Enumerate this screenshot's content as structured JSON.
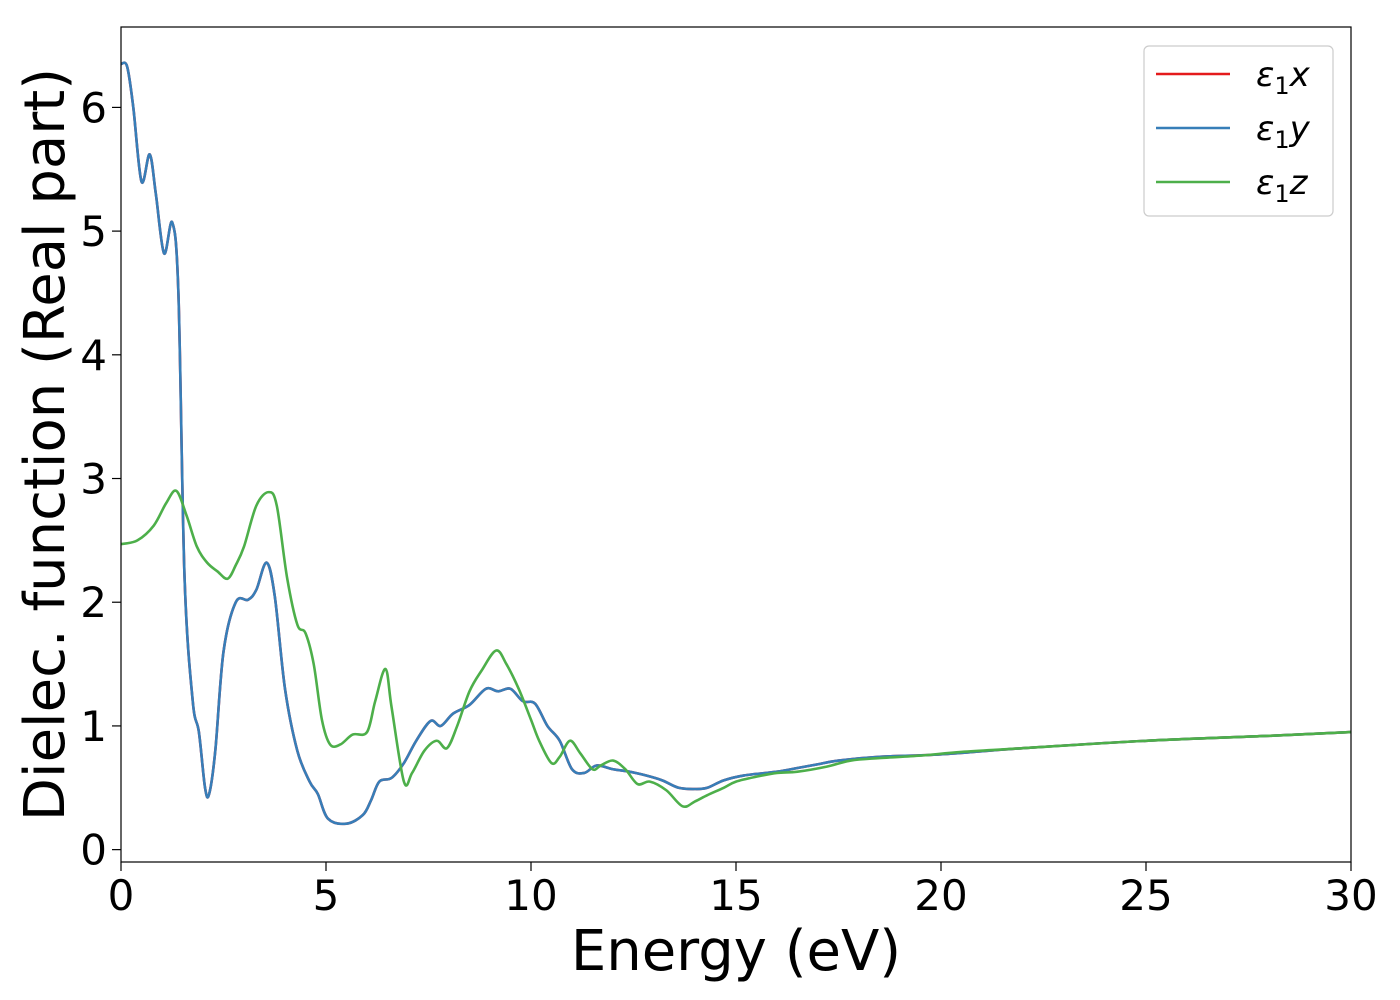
{
  "chart_data": {
    "type": "line",
    "title": "",
    "xlabel": "Energy (eV)",
    "ylabel": "Dielec. function (Real part)",
    "xlim": [
      0,
      30
    ],
    "ylim": [
      -0.1,
      6.65
    ],
    "xticks": [
      "0",
      "5",
      "10",
      "15",
      "20",
      "25",
      "30"
    ],
    "yticks": [
      "0",
      "1",
      "2",
      "3",
      "4",
      "5",
      "6"
    ],
    "grid": false,
    "legend_position": "top-right",
    "series": [
      {
        "name": "ε1x",
        "legend": {
          "symbol": "ε",
          "sub": "1",
          "tail": "x"
        },
        "color": "#e41a1c",
        "points": [
          [
            0,
            6.35
          ],
          [
            0.15,
            6.33
          ],
          [
            0.3,
            6.0
          ],
          [
            0.5,
            5.4
          ],
          [
            0.7,
            5.62
          ],
          [
            0.85,
            5.3
          ],
          [
            1.05,
            4.82
          ],
          [
            1.25,
            5.07
          ],
          [
            1.4,
            4.5
          ],
          [
            1.55,
            2.2
          ],
          [
            1.75,
            1.2
          ],
          [
            1.9,
            0.95
          ],
          [
            2.05,
            0.5
          ],
          [
            2.15,
            0.45
          ],
          [
            2.3,
            0.8
          ],
          [
            2.5,
            1.6
          ],
          [
            2.8,
            2.0
          ],
          [
            3.1,
            2.02
          ],
          [
            3.3,
            2.1
          ],
          [
            3.55,
            2.32
          ],
          [
            3.75,
            2.05
          ],
          [
            4.0,
            1.3
          ],
          [
            4.3,
            0.8
          ],
          [
            4.6,
            0.55
          ],
          [
            4.8,
            0.45
          ],
          [
            5.05,
            0.25
          ],
          [
            5.5,
            0.21
          ],
          [
            5.9,
            0.28
          ],
          [
            6.1,
            0.4
          ],
          [
            6.3,
            0.55
          ],
          [
            6.6,
            0.58
          ],
          [
            6.9,
            0.7
          ],
          [
            7.2,
            0.88
          ],
          [
            7.55,
            1.04
          ],
          [
            7.8,
            1.0
          ],
          [
            8.1,
            1.1
          ],
          [
            8.5,
            1.17
          ],
          [
            8.9,
            1.3
          ],
          [
            9.2,
            1.28
          ],
          [
            9.5,
            1.3
          ],
          [
            9.8,
            1.2
          ],
          [
            10.1,
            1.18
          ],
          [
            10.4,
            1.0
          ],
          [
            10.7,
            0.88
          ],
          [
            11.0,
            0.65
          ],
          [
            11.3,
            0.62
          ],
          [
            11.6,
            0.68
          ],
          [
            12.0,
            0.65
          ],
          [
            12.4,
            0.63
          ],
          [
            12.8,
            0.6
          ],
          [
            13.2,
            0.56
          ],
          [
            13.6,
            0.5
          ],
          [
            14.0,
            0.49
          ],
          [
            14.3,
            0.5
          ],
          [
            14.7,
            0.56
          ],
          [
            15.2,
            0.6
          ],
          [
            16.0,
            0.63
          ],
          [
            16.5,
            0.66
          ],
          [
            17.0,
            0.69
          ],
          [
            17.5,
            0.72
          ],
          [
            18.5,
            0.75
          ],
          [
            20.0,
            0.77
          ],
          [
            22.0,
            0.82
          ],
          [
            25.0,
            0.88
          ],
          [
            28.0,
            0.92
          ],
          [
            30.0,
            0.95
          ]
        ]
      },
      {
        "name": "ε1y",
        "legend": {
          "symbol": "ε",
          "sub": "1",
          "tail": "y"
        },
        "color": "#377eb8",
        "points": [
          [
            0,
            6.35
          ],
          [
            0.15,
            6.33
          ],
          [
            0.3,
            6.0
          ],
          [
            0.5,
            5.4
          ],
          [
            0.7,
            5.62
          ],
          [
            0.85,
            5.3
          ],
          [
            1.05,
            4.82
          ],
          [
            1.25,
            5.07
          ],
          [
            1.4,
            4.5
          ],
          [
            1.55,
            2.2
          ],
          [
            1.75,
            1.2
          ],
          [
            1.9,
            0.95
          ],
          [
            2.05,
            0.5
          ],
          [
            2.15,
            0.45
          ],
          [
            2.3,
            0.8
          ],
          [
            2.5,
            1.6
          ],
          [
            2.8,
            2.0
          ],
          [
            3.1,
            2.02
          ],
          [
            3.3,
            2.1
          ],
          [
            3.55,
            2.32
          ],
          [
            3.75,
            2.05
          ],
          [
            4.0,
            1.3
          ],
          [
            4.3,
            0.8
          ],
          [
            4.6,
            0.55
          ],
          [
            4.8,
            0.45
          ],
          [
            5.05,
            0.25
          ],
          [
            5.5,
            0.21
          ],
          [
            5.9,
            0.28
          ],
          [
            6.1,
            0.4
          ],
          [
            6.3,
            0.55
          ],
          [
            6.6,
            0.58
          ],
          [
            6.9,
            0.7
          ],
          [
            7.2,
            0.88
          ],
          [
            7.55,
            1.04
          ],
          [
            7.8,
            1.0
          ],
          [
            8.1,
            1.1
          ],
          [
            8.5,
            1.17
          ],
          [
            8.9,
            1.3
          ],
          [
            9.2,
            1.28
          ],
          [
            9.5,
            1.3
          ],
          [
            9.8,
            1.2
          ],
          [
            10.1,
            1.18
          ],
          [
            10.4,
            1.0
          ],
          [
            10.7,
            0.88
          ],
          [
            11.0,
            0.65
          ],
          [
            11.3,
            0.62
          ],
          [
            11.6,
            0.68
          ],
          [
            12.0,
            0.65
          ],
          [
            12.4,
            0.63
          ],
          [
            12.8,
            0.6
          ],
          [
            13.2,
            0.56
          ],
          [
            13.6,
            0.5
          ],
          [
            14.0,
            0.49
          ],
          [
            14.3,
            0.5
          ],
          [
            14.7,
            0.56
          ],
          [
            15.2,
            0.6
          ],
          [
            16.0,
            0.63
          ],
          [
            16.5,
            0.66
          ],
          [
            17.0,
            0.69
          ],
          [
            17.5,
            0.72
          ],
          [
            18.5,
            0.75
          ],
          [
            20.0,
            0.77
          ],
          [
            22.0,
            0.82
          ],
          [
            25.0,
            0.88
          ],
          [
            28.0,
            0.92
          ],
          [
            30.0,
            0.95
          ]
        ]
      },
      {
        "name": "ε1z",
        "legend": {
          "symbol": "ε",
          "sub": "1",
          "tail": "z"
        },
        "color": "#4daf4a",
        "points": [
          [
            0,
            2.47
          ],
          [
            0.4,
            2.5
          ],
          [
            0.8,
            2.62
          ],
          [
            1.1,
            2.8
          ],
          [
            1.35,
            2.9
          ],
          [
            1.6,
            2.7
          ],
          [
            1.85,
            2.45
          ],
          [
            2.1,
            2.32
          ],
          [
            2.35,
            2.25
          ],
          [
            2.6,
            2.19
          ],
          [
            2.8,
            2.3
          ],
          [
            3.0,
            2.45
          ],
          [
            3.3,
            2.78
          ],
          [
            3.6,
            2.89
          ],
          [
            3.8,
            2.78
          ],
          [
            4.05,
            2.2
          ],
          [
            4.3,
            1.82
          ],
          [
            4.5,
            1.75
          ],
          [
            4.7,
            1.5
          ],
          [
            4.9,
            1.05
          ],
          [
            5.1,
            0.85
          ],
          [
            5.35,
            0.85
          ],
          [
            5.65,
            0.93
          ],
          [
            6.0,
            0.95
          ],
          [
            6.2,
            1.2
          ],
          [
            6.45,
            1.46
          ],
          [
            6.6,
            1.15
          ],
          [
            6.9,
            0.55
          ],
          [
            7.1,
            0.62
          ],
          [
            7.4,
            0.8
          ],
          [
            7.7,
            0.88
          ],
          [
            7.95,
            0.82
          ],
          [
            8.2,
            1.0
          ],
          [
            8.5,
            1.28
          ],
          [
            8.8,
            1.45
          ],
          [
            9.15,
            1.61
          ],
          [
            9.4,
            1.5
          ],
          [
            9.7,
            1.3
          ],
          [
            10.0,
            1.05
          ],
          [
            10.2,
            0.88
          ],
          [
            10.5,
            0.7
          ],
          [
            10.7,
            0.75
          ],
          [
            10.95,
            0.88
          ],
          [
            11.2,
            0.78
          ],
          [
            11.5,
            0.65
          ],
          [
            11.7,
            0.68
          ],
          [
            12.0,
            0.72
          ],
          [
            12.3,
            0.65
          ],
          [
            12.6,
            0.53
          ],
          [
            12.9,
            0.55
          ],
          [
            13.3,
            0.48
          ],
          [
            13.7,
            0.35
          ],
          [
            14.0,
            0.39
          ],
          [
            14.3,
            0.44
          ],
          [
            14.7,
            0.5
          ],
          [
            15.0,
            0.55
          ],
          [
            15.5,
            0.59
          ],
          [
            16.0,
            0.62
          ],
          [
            16.5,
            0.63
          ],
          [
            17.2,
            0.67
          ],
          [
            17.8,
            0.72
          ],
          [
            18.5,
            0.74
          ],
          [
            19.5,
            0.76
          ],
          [
            20.5,
            0.79
          ],
          [
            22.0,
            0.82
          ],
          [
            25.0,
            0.88
          ],
          [
            28.0,
            0.92
          ],
          [
            30.0,
            0.95
          ]
        ]
      }
    ]
  }
}
